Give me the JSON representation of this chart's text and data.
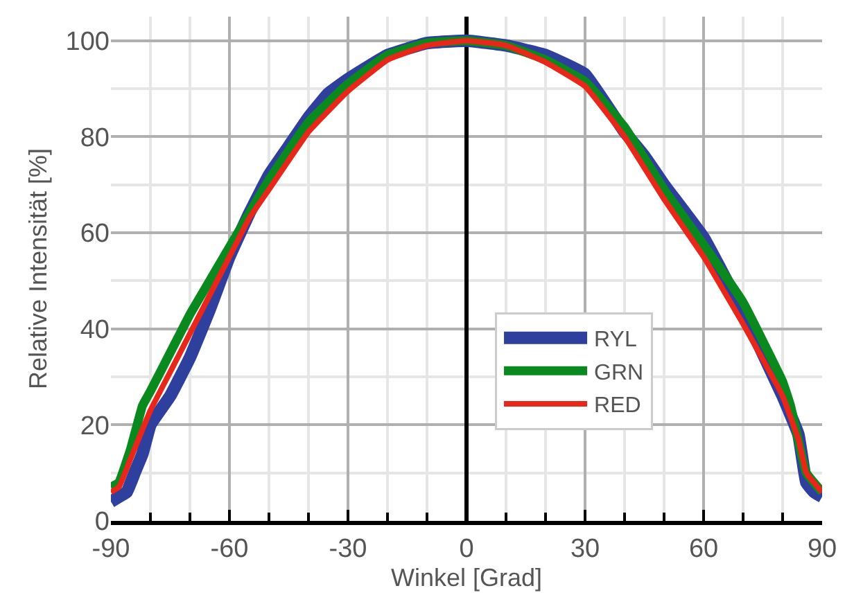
{
  "chart_data": {
    "type": "line",
    "xlabel": "Winkel [Grad]",
    "ylabel": "Relative Intensität [%]",
    "xlim": [
      -90,
      90
    ],
    "xticks": [
      -90,
      -60,
      -30,
      0,
      30,
      60,
      90
    ],
    "ylim": [
      0,
      105
    ],
    "yticks": [
      0,
      20,
      40,
      60,
      80,
      100
    ],
    "grid": true,
    "legend": "right",
    "marker": "none",
    "line_style": "solid",
    "series": [
      {
        "name": "RYL",
        "color": "#2e3f9e",
        "x": [
          -90,
          -88,
          -86,
          -84,
          -82,
          -80,
          -75,
          -70,
          -65,
          -60,
          -55,
          -50,
          -45,
          -40,
          -35,
          -30,
          -20,
          -10,
          0,
          10,
          20,
          30,
          40,
          45,
          50,
          60,
          70,
          80,
          84,
          86,
          88,
          90
        ],
        "values": [
          4,
          5,
          6,
          10,
          14,
          20,
          26,
          34,
          44,
          55,
          64,
          72,
          78,
          84,
          89,
          92,
          97,
          99.5,
          100,
          99,
          97,
          93,
          81,
          76,
          70,
          59,
          43.5,
          26,
          18,
          8,
          6,
          5
        ]
      },
      {
        "name": "GRN",
        "color": "#0a8a1e",
        "x": [
          -90,
          -88,
          -85,
          -82,
          -80,
          -75,
          -70,
          -65,
          -60,
          -55,
          -50,
          -40,
          -30,
          -20,
          -10,
          0,
          10,
          20,
          30,
          40,
          50,
          60,
          70,
          80,
          82,
          86,
          90
        ],
        "values": [
          7,
          8,
          15,
          24,
          27,
          35,
          43,
          50,
          57,
          64,
          71,
          83,
          91,
          97,
          99.5,
          100,
          99,
          96,
          91.5,
          82,
          69,
          57.5,
          45.5,
          29,
          24,
          10,
          6
        ]
      },
      {
        "name": "RED",
        "color": "#e8261a",
        "x": [
          -90,
          -88,
          -85,
          -80,
          -75,
          -70,
          -65,
          -60,
          -55,
          -50,
          -40,
          -30,
          -20,
          -10,
          0,
          10,
          20,
          30,
          40,
          50,
          60,
          70,
          80,
          84,
          86,
          90
        ],
        "values": [
          6,
          7,
          13,
          23,
          31,
          39,
          47,
          55,
          63,
          69,
          81,
          89.5,
          96,
          99,
          100,
          99,
          95.5,
          90.5,
          80,
          67,
          55,
          41,
          26,
          17,
          10,
          6
        ]
      }
    ]
  }
}
